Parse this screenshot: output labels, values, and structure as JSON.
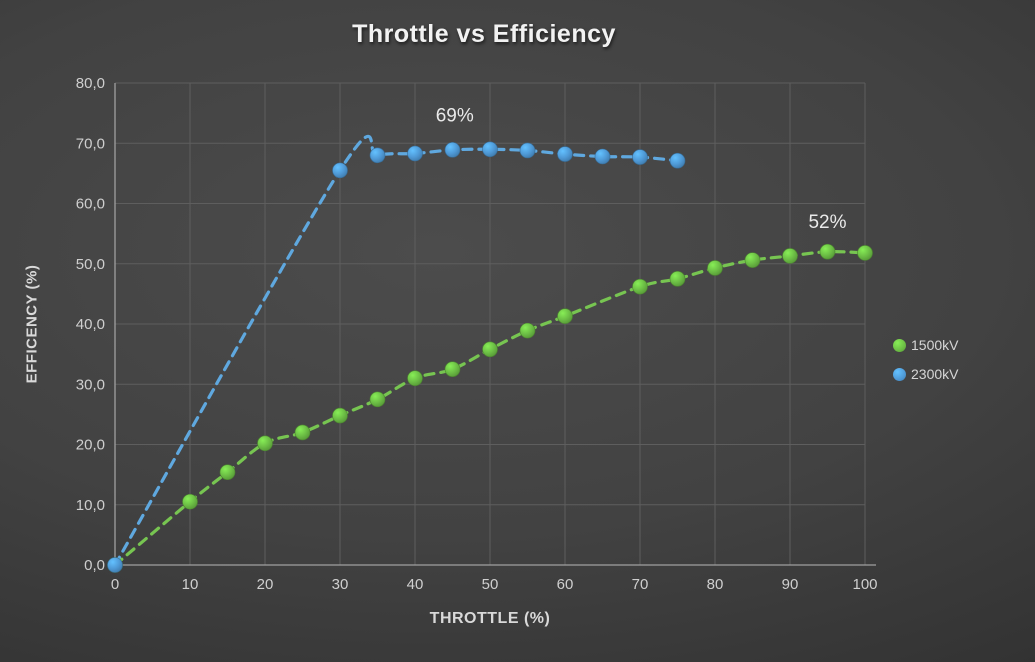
{
  "chart_data": {
    "type": "scatter",
    "title": "Throttle vs Efficiency",
    "xlabel": "THROTTLE (%)",
    "ylabel": "EFFICENCY (%)",
    "xlim": [
      0,
      100
    ],
    "ylim": [
      0,
      80
    ],
    "grid": true,
    "legend_position": "right-center",
    "x_tick_values": [
      0,
      10,
      20,
      30,
      40,
      50,
      60,
      70,
      80,
      90,
      100
    ],
    "x_tick_labels": [
      "0",
      "10",
      "20",
      "30",
      "40",
      "50",
      "60",
      "70",
      "80",
      "90",
      "100"
    ],
    "y_tick_values": [
      0,
      10,
      20,
      30,
      40,
      50,
      60,
      70,
      80
    ],
    "y_tick_labels": [
      "0,0",
      "10,0",
      "20,0",
      "30,0",
      "40,0",
      "50,0",
      "60,0",
      "70,0",
      "80,0"
    ],
    "series": [
      {
        "name": "1500kV",
        "marker_color": "#6CBE45",
        "line_color": "#77C551",
        "line_style": "dashed",
        "points": [
          [
            0,
            0
          ],
          [
            10,
            10.5
          ],
          [
            15,
            15.4
          ],
          [
            20,
            20.2
          ],
          [
            25,
            22.0
          ],
          [
            30,
            24.8
          ],
          [
            35,
            27.5
          ],
          [
            40,
            31.0
          ],
          [
            45,
            32.5
          ],
          [
            50,
            35.8
          ],
          [
            55,
            38.9
          ],
          [
            60,
            41.3
          ],
          [
            70,
            46.2
          ],
          [
            75,
            47.5
          ],
          [
            80,
            49.3
          ],
          [
            85,
            50.6
          ],
          [
            90,
            51.3
          ],
          [
            95,
            52.0
          ],
          [
            100,
            51.8
          ]
        ]
      },
      {
        "name": "2300kV",
        "marker_color": "#4F9AD7",
        "line_color": "#5FA8DF",
        "line_style": "dashed",
        "points": [
          [
            0,
            0
          ],
          [
            30,
            65.5
          ],
          [
            35,
            68.0
          ],
          [
            40,
            68.3
          ],
          [
            45,
            68.9
          ],
          [
            50,
            69.0
          ],
          [
            55,
            68.8
          ],
          [
            60,
            68.2
          ],
          [
            65,
            67.8
          ],
          [
            70,
            67.7
          ],
          [
            75,
            67.1
          ]
        ]
      }
    ],
    "annotations": [
      {
        "text": "69%",
        "x": 45.3,
        "y": 74.6
      },
      {
        "text": "52%",
        "x": 95.0,
        "y": 56.9
      }
    ]
  },
  "colors": {
    "tick_label": "#cfcfcf",
    "gridline": "#5e5e5e",
    "axis_line": "#a0a0a0",
    "annotation": "#eaeaea"
  }
}
